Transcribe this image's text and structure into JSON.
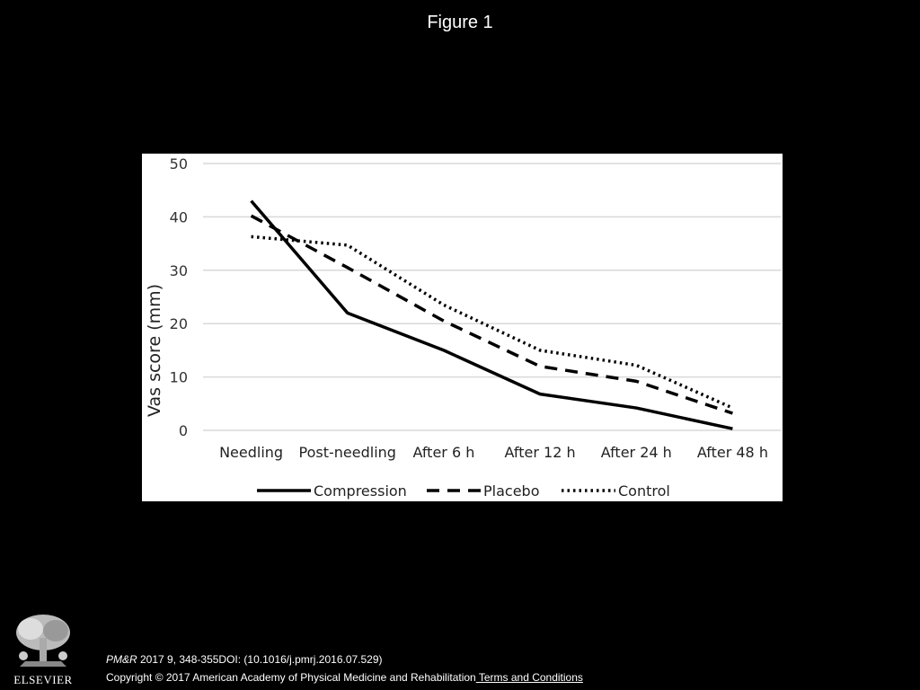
{
  "figure_title": "Figure 1",
  "citation": {
    "journal": "PM&R",
    "details": " 2017 9, 348-355DOI: (10.1016/j.pmrj.2016.07.529)"
  },
  "copyright": {
    "text": "Copyright © 2017 American Academy of Physical Medicine and Rehabilitation",
    "link": " Terms and Conditions"
  },
  "logo": {
    "text": "ELSEVIER",
    "icon": "elsevier-tree-icon"
  },
  "chart_data": {
    "type": "line",
    "title": "",
    "xlabel": "",
    "ylabel": "Vas score (mm)",
    "ylim": [
      0,
      50
    ],
    "yticks": [
      "0",
      "10",
      "20",
      "30",
      "40",
      "50"
    ],
    "grid": true,
    "legend_position": "bottom",
    "categories": [
      "Needling",
      "Post-needling",
      "After 6 h",
      "After 12 h",
      "After 24 h",
      "After 48 h"
    ],
    "series": [
      {
        "name": "Compression",
        "style": "solid",
        "color": "#000000",
        "values": [
          43,
          22,
          15,
          6.8,
          4.2,
          0.3
        ]
      },
      {
        "name": "Placebo",
        "style": "dashed",
        "color": "#000000",
        "values": [
          40.2,
          30.5,
          20.5,
          12,
          9.2,
          3.2
        ]
      },
      {
        "name": "Control",
        "style": "dotted",
        "color": "#000000",
        "values": [
          36.3,
          34.7,
          23.5,
          15,
          12.2,
          4.2
        ]
      }
    ]
  }
}
